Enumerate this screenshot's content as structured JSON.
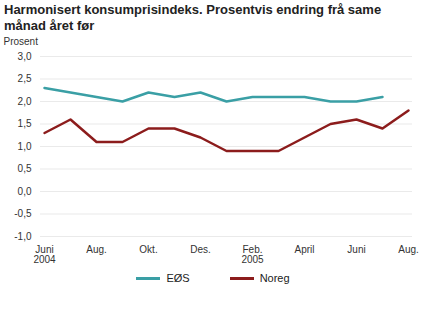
{
  "chart_data": {
    "type": "line",
    "title": "Harmonisert konsumprisindeks. Prosentvis endring frå same månad året før",
    "y_label": "Prosent",
    "categories": [
      "Juni\n2004",
      null,
      "Aug.",
      null,
      "Okt.",
      null,
      "Des.",
      null,
      "Feb.\n2005",
      null,
      "April",
      null,
      "Juni",
      null,
      "Aug."
    ],
    "series": [
      {
        "name": "EØS",
        "color": "#3a9fa5",
        "values": [
          2.3,
          2.2,
          2.1,
          2.0,
          2.2,
          2.1,
          2.2,
          2.0,
          2.1,
          2.1,
          2.1,
          2.0,
          2.0,
          2.1,
          null
        ]
      },
      {
        "name": "Noreg",
        "color": "#8c1c1c",
        "values": [
          1.3,
          1.6,
          1.1,
          1.1,
          1.4,
          1.4,
          1.2,
          0.9,
          0.9,
          0.9,
          1.2,
          1.5,
          1.6,
          1.4,
          1.8
        ]
      }
    ],
    "ylim": [
      -1.0,
      3.0
    ],
    "yticks": [
      {
        "value": -1.0,
        "label": "-1,0"
      },
      {
        "value": -0.5,
        "label": "-0,5"
      },
      {
        "value": 0.0,
        "label": "0,0"
      },
      {
        "value": 0.5,
        "label": "0,5"
      },
      {
        "value": 1.0,
        "label": "1,0"
      },
      {
        "value": 1.5,
        "label": "1,5"
      },
      {
        "value": 2.0,
        "label": "2,0"
      },
      {
        "value": 2.5,
        "label": "2,5"
      },
      {
        "value": 3.0,
        "label": "3,0"
      }
    ],
    "grid": true,
    "legend": "bottom"
  }
}
